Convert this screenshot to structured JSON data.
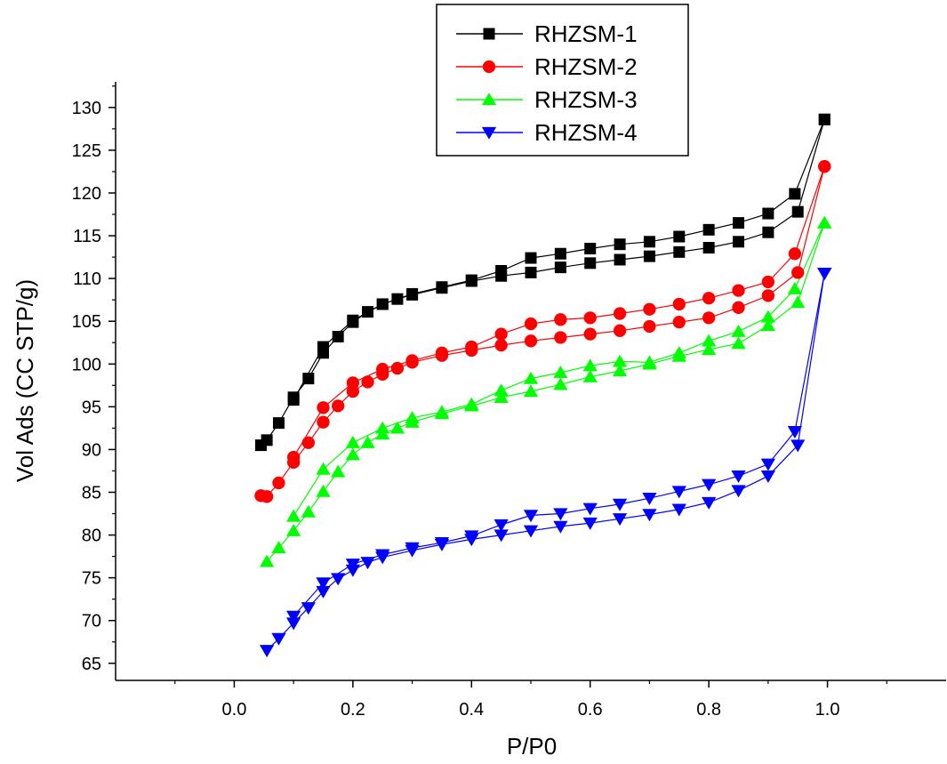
{
  "chart_data": {
    "type": "line",
    "xlabel": "P/P0",
    "ylabel": "Vol Ads (CC STP/g)",
    "xlim": [
      -0.2,
      1.2
    ],
    "ylim": [
      63,
      133
    ],
    "x_ticks": [
      0.0,
      0.2,
      0.4,
      0.6,
      0.8,
      1.0
    ],
    "x_tick_labels": [
      "0.0",
      "0.2",
      "0.4",
      "0.6",
      "0.8",
      "1.0"
    ],
    "y_ticks": [
      65,
      70,
      75,
      80,
      85,
      90,
      95,
      100,
      105,
      110,
      115,
      120,
      125,
      130
    ],
    "y_tick_labels": [
      "65",
      "70",
      "75",
      "80",
      "85",
      "90",
      "95",
      "100",
      "105",
      "110",
      "115",
      "120",
      "125",
      "130"
    ],
    "legend_position": "top-center",
    "series": [
      {
        "name": "RHZSM-1",
        "color": "#000000",
        "marker": "square",
        "adsorption": {
          "x": [
            0.045,
            0.055,
            0.075,
            0.1,
            0.125,
            0.15,
            0.175,
            0.2,
            0.225,
            0.25,
            0.275,
            0.3,
            0.35,
            0.4,
            0.45,
            0.5,
            0.55,
            0.6,
            0.65,
            0.7,
            0.75,
            0.8,
            0.85,
            0.9,
            0.95,
            0.995
          ],
          "y": [
            90.5,
            91.1,
            93.1,
            96.1,
            98.3,
            101.3,
            103.2,
            104.9,
            106.1,
            107.0,
            107.6,
            108.1,
            108.9,
            109.7,
            110.3,
            110.7,
            111.3,
            111.8,
            112.2,
            112.6,
            113.1,
            113.6,
            114.3,
            115.4,
            117.8,
            128.6
          ]
        },
        "desorption": {
          "x": [
            0.995,
            0.945,
            0.9,
            0.85,
            0.8,
            0.75,
            0.7,
            0.65,
            0.6,
            0.55,
            0.5,
            0.45,
            0.4,
            0.35,
            0.3,
            0.25,
            0.2,
            0.15,
            0.1
          ],
          "y": [
            128.6,
            119.9,
            117.6,
            116.5,
            115.7,
            114.9,
            114.3,
            114.0,
            113.5,
            112.9,
            112.4,
            110.9,
            109.8,
            109.0,
            108.2,
            107.0,
            105.1,
            102.0,
            95.8
          ]
        }
      },
      {
        "name": "RHZSM-2",
        "color": "#ff0000",
        "marker": "circle",
        "adsorption": {
          "x": [
            0.045,
            0.055,
            0.075,
            0.1,
            0.125,
            0.15,
            0.175,
            0.2,
            0.225,
            0.25,
            0.275,
            0.3,
            0.35,
            0.4,
            0.45,
            0.5,
            0.55,
            0.6,
            0.65,
            0.7,
            0.75,
            0.8,
            0.85,
            0.9,
            0.95,
            0.995
          ],
          "y": [
            84.6,
            84.5,
            86.1,
            88.5,
            90.8,
            93.2,
            95.1,
            96.8,
            97.9,
            98.8,
            99.5,
            100.2,
            101.0,
            101.6,
            102.2,
            102.7,
            103.1,
            103.5,
            103.9,
            104.4,
            104.9,
            105.4,
            106.6,
            108.0,
            110.7,
            123.1
          ]
        },
        "desorption": {
          "x": [
            0.995,
            0.945,
            0.9,
            0.85,
            0.8,
            0.75,
            0.7,
            0.65,
            0.6,
            0.55,
            0.5,
            0.45,
            0.4,
            0.35,
            0.3,
            0.25,
            0.2,
            0.15,
            0.1
          ],
          "y": [
            123.1,
            112.9,
            109.6,
            108.6,
            107.7,
            107.0,
            106.4,
            105.9,
            105.4,
            105.2,
            104.7,
            103.5,
            102.0,
            101.3,
            100.4,
            99.4,
            97.8,
            94.9,
            89.1
          ]
        }
      },
      {
        "name": "RHZSM-3",
        "color": "#00ff00",
        "marker": "triangle-up",
        "adsorption": {
          "x": [
            0.055,
            0.075,
            0.1,
            0.125,
            0.15,
            0.175,
            0.2,
            0.225,
            0.25,
            0.275,
            0.3,
            0.35,
            0.4,
            0.45,
            0.5,
            0.55,
            0.6,
            0.65,
            0.7,
            0.75,
            0.8,
            0.85,
            0.9,
            0.95,
            0.995
          ],
          "y": [
            76.9,
            78.5,
            80.5,
            82.7,
            85.1,
            87.4,
            89.4,
            90.8,
            91.8,
            92.5,
            93.2,
            94.2,
            95.1,
            96.1,
            96.8,
            97.6,
            98.5,
            99.2,
            100.0,
            100.9,
            101.7,
            102.4,
            104.5,
            107.2,
            116.5
          ]
        },
        "desorption": {
          "x": [
            0.995,
            0.945,
            0.9,
            0.85,
            0.8,
            0.75,
            0.7,
            0.65,
            0.6,
            0.55,
            0.5,
            0.45,
            0.4,
            0.35,
            0.3,
            0.25,
            0.2,
            0.15,
            0.1
          ],
          "y": [
            116.5,
            108.8,
            105.5,
            103.8,
            102.7,
            101.3,
            100.2,
            100.3,
            99.8,
            99.0,
            98.3,
            96.9,
            95.3,
            94.4,
            93.7,
            92.5,
            90.8,
            87.7,
            82.2
          ]
        }
      },
      {
        "name": "RHZSM-4",
        "color": "#0000ff",
        "marker": "triangle-down",
        "adsorption": {
          "x": [
            0.055,
            0.075,
            0.1,
            0.125,
            0.15,
            0.175,
            0.2,
            0.225,
            0.25,
            0.3,
            0.35,
            0.4,
            0.45,
            0.5,
            0.55,
            0.6,
            0.65,
            0.7,
            0.75,
            0.8,
            0.85,
            0.9,
            0.95,
            0.995
          ],
          "y": [
            66.5,
            67.9,
            69.7,
            71.5,
            73.4,
            74.9,
            75.9,
            76.8,
            77.4,
            78.2,
            78.9,
            79.5,
            80.0,
            80.5,
            81.0,
            81.4,
            81.9,
            82.4,
            83.0,
            83.8,
            85.2,
            86.9,
            90.5,
            110.6
          ]
        },
        "desorption": {
          "x": [
            0.995,
            0.945,
            0.9,
            0.85,
            0.8,
            0.75,
            0.7,
            0.65,
            0.6,
            0.55,
            0.5,
            0.45,
            0.4,
            0.35,
            0.3,
            0.25,
            0.2,
            0.15,
            0.1
          ],
          "y": [
            110.6,
            92.1,
            88.3,
            86.9,
            85.9,
            85.1,
            84.3,
            83.6,
            83.1,
            82.5,
            82.3,
            81.2,
            79.9,
            79.1,
            78.5,
            77.7,
            76.6,
            74.4,
            70.5
          ]
        }
      }
    ]
  }
}
